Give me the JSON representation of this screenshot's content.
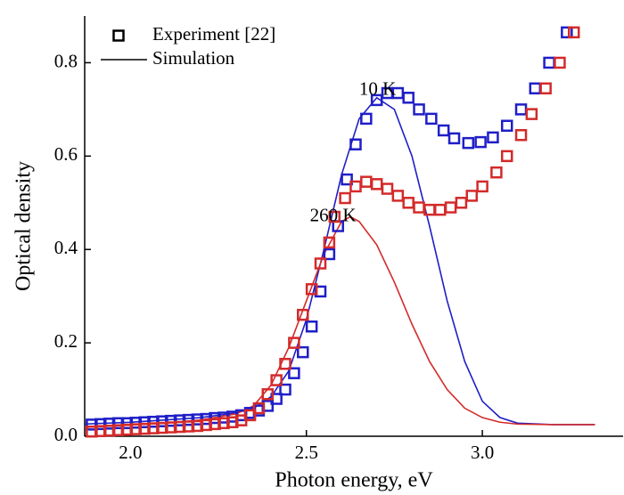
{
  "chart_data": {
    "type": "scatter",
    "x_label": "Photon energy, eV",
    "y_label": "Optical density",
    "xlim": [
      1.87,
      3.4
    ],
    "ylim": [
      0,
      0.9
    ],
    "xticks": [
      {
        "value": 2.0,
        "label": "2.0"
      },
      2.5,
      {
        "value": 3.0,
        "label": "3.0"
      }
    ],
    "yticks": [
      {
        "value": 0,
        "label": "0.0"
      },
      0.2,
      0.4,
      0.6,
      0.8
    ],
    "legend": [
      {
        "label": "Experiment [22]",
        "marker": "square",
        "color": "#000000"
      },
      {
        "label": "Simulation",
        "marker": "line",
        "color": "#000000"
      }
    ],
    "legend_position": "upper left",
    "annotations": [
      {
        "text": "10 K",
        "x": 2.65,
        "y": 0.74,
        "color": "#1f1fc8"
      },
      {
        "text": "260 K",
        "x": 2.51,
        "y": 0.47,
        "color": "#d42a2a"
      }
    ],
    "series": [
      {
        "mode": "line",
        "color": "#1f1fc8",
        "x": [
          1.87,
          1.9,
          2.0,
          2.1,
          2.2,
          2.3,
          2.35,
          2.4,
          2.45,
          2.5,
          2.55,
          2.6,
          2.65,
          2.7,
          2.75,
          2.8,
          2.85,
          2.9,
          2.95,
          3.0,
          3.05,
          3.1,
          3.2,
          3.32
        ],
        "values": [
          0.026,
          0.027,
          0.03,
          0.035,
          0.04,
          0.05,
          0.06,
          0.085,
          0.14,
          0.25,
          0.4,
          0.56,
          0.68,
          0.725,
          0.7,
          0.6,
          0.45,
          0.29,
          0.16,
          0.075,
          0.04,
          0.028,
          0.025,
          0.025
        ]
      },
      {
        "mode": "line",
        "color": "#d42a2a",
        "x": [
          1.87,
          1.9,
          2.0,
          2.1,
          2.2,
          2.3,
          2.35,
          2.4,
          2.45,
          2.5,
          2.55,
          2.6,
          2.625,
          2.65,
          2.7,
          2.75,
          2.8,
          2.85,
          2.9,
          2.95,
          3.0,
          3.05,
          3.1,
          3.2,
          3.32
        ],
        "values": [
          0.019,
          0.02,
          0.024,
          0.028,
          0.035,
          0.048,
          0.065,
          0.11,
          0.19,
          0.29,
          0.39,
          0.46,
          0.47,
          0.46,
          0.41,
          0.33,
          0.24,
          0.16,
          0.1,
          0.06,
          0.04,
          0.03,
          0.026,
          0.025,
          0.025
        ]
      },
      {
        "mode": "markers",
        "color": "#1f1fc8",
        "x": [
          1.89,
          1.915,
          1.94,
          1.965,
          1.99,
          2.015,
          2.04,
          2.065,
          2.09,
          2.115,
          2.14,
          2.165,
          2.19,
          2.215,
          2.24,
          2.265,
          2.29,
          2.315,
          2.34,
          2.365,
          2.39,
          2.415,
          2.44,
          2.465,
          2.49,
          2.515,
          2.54,
          2.565,
          2.59,
          2.615,
          2.64,
          2.67,
          2.7,
          2.73,
          2.76,
          2.79,
          2.82,
          2.855,
          2.89,
          2.92,
          2.96,
          2.995,
          3.03,
          3.07,
          3.11,
          3.15,
          3.19,
          3.24
        ],
        "values": [
          0.025,
          0.026,
          0.027,
          0.028,
          0.028,
          0.029,
          0.03,
          0.031,
          0.032,
          0.033,
          0.034,
          0.035,
          0.036,
          0.037,
          0.039,
          0.04,
          0.042,
          0.045,
          0.05,
          0.055,
          0.065,
          0.08,
          0.1,
          0.135,
          0.18,
          0.235,
          0.31,
          0.39,
          0.45,
          0.55,
          0.625,
          0.68,
          0.72,
          0.735,
          0.735,
          0.725,
          0.7,
          0.68,
          0.655,
          0.638,
          0.628,
          0.63,
          0.64,
          0.665,
          0.7,
          0.745,
          0.8,
          0.865
        ]
      },
      {
        "mode": "markers",
        "color": "#d42a2a",
        "x": [
          1.89,
          1.915,
          1.94,
          1.965,
          1.99,
          2.015,
          2.04,
          2.065,
          2.09,
          2.115,
          2.14,
          2.165,
          2.19,
          2.215,
          2.24,
          2.265,
          2.29,
          2.315,
          2.34,
          2.365,
          2.39,
          2.415,
          2.44,
          2.465,
          2.49,
          2.515,
          2.54,
          2.565,
          2.58,
          2.61,
          2.64,
          2.67,
          2.7,
          2.73,
          2.76,
          2.79,
          2.82,
          2.85,
          2.88,
          2.91,
          2.94,
          2.97,
          3.0,
          3.04,
          3.07,
          3.11,
          3.14,
          3.18,
          3.22,
          3.26
        ],
        "values": [
          0.01,
          0.011,
          0.012,
          0.013,
          0.014,
          0.015,
          0.016,
          0.017,
          0.018,
          0.019,
          0.02,
          0.021,
          0.022,
          0.024,
          0.026,
          0.028,
          0.03,
          0.034,
          0.045,
          0.06,
          0.09,
          0.12,
          0.155,
          0.2,
          0.26,
          0.315,
          0.37,
          0.415,
          0.47,
          0.51,
          0.535,
          0.545,
          0.54,
          0.53,
          0.515,
          0.5,
          0.49,
          0.485,
          0.485,
          0.49,
          0.5,
          0.515,
          0.535,
          0.565,
          0.6,
          0.645,
          0.69,
          0.745,
          0.8,
          0.865
        ]
      }
    ]
  }
}
